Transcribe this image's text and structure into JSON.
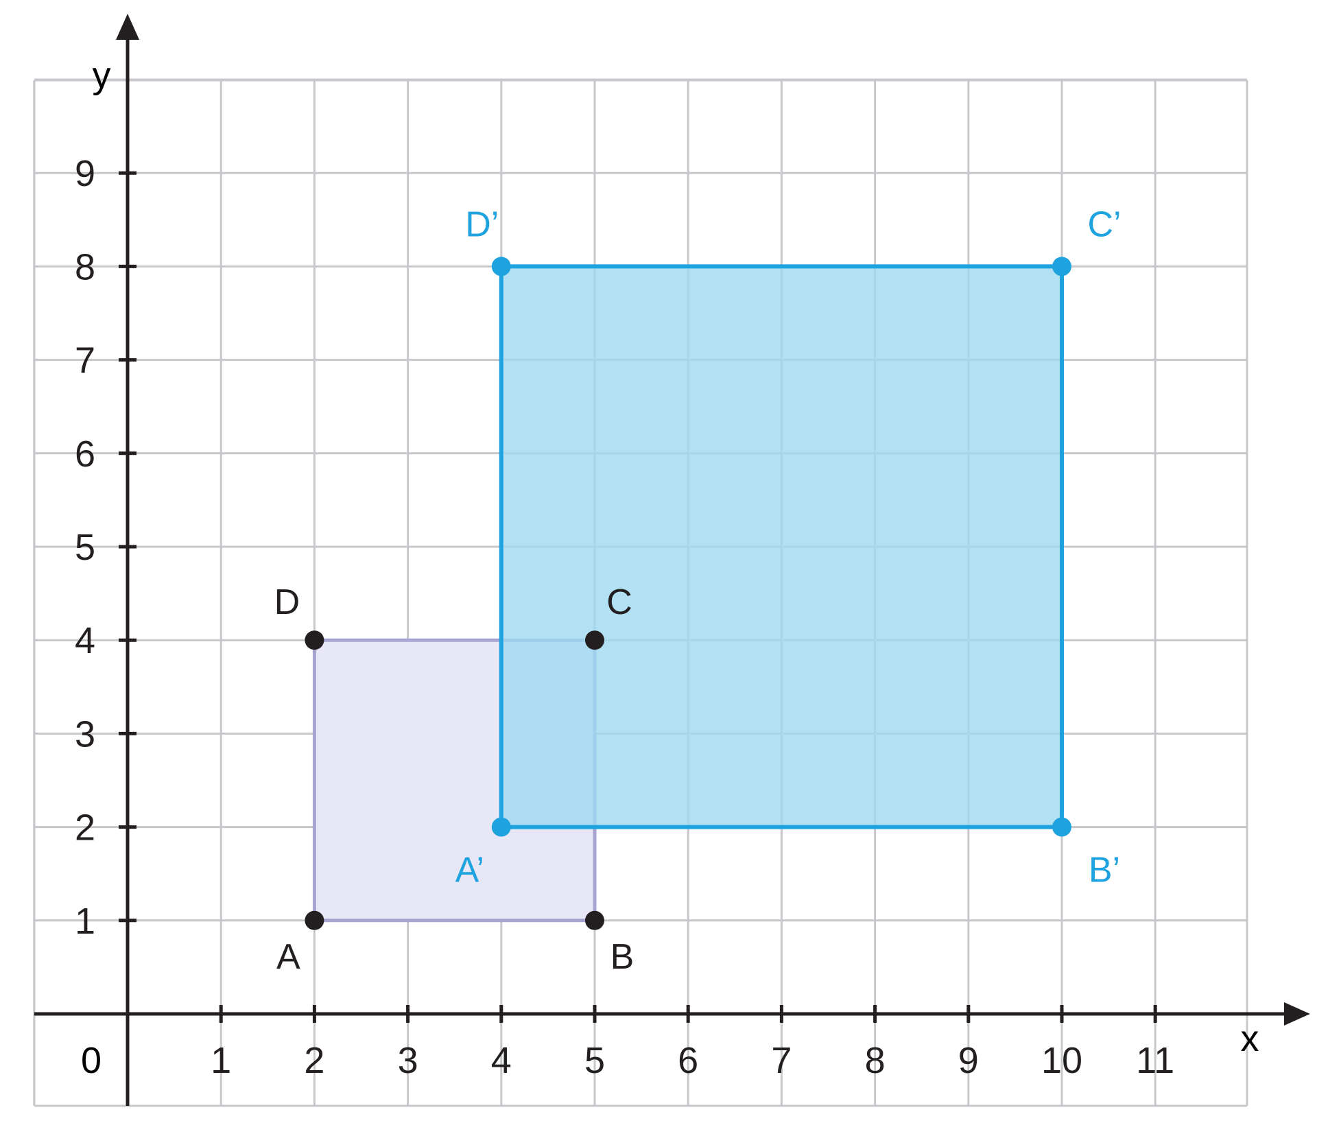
{
  "diagram": {
    "axes": {
      "x_label": "x",
      "y_label": "y",
      "origin_label": "0",
      "x_ticks": [
        "1",
        "2",
        "3",
        "4",
        "5",
        "6",
        "7",
        "8",
        "9",
        "10",
        "11"
      ],
      "y_ticks": [
        "1",
        "2",
        "3",
        "4",
        "5",
        "6",
        "7",
        "8",
        "9"
      ],
      "x_range": [
        -1,
        12
      ],
      "y_range": [
        -1,
        10
      ]
    },
    "shapes": [
      {
        "name": "ABCD",
        "fill": "#e8e7f5",
        "stroke": "#a7a4d2",
        "point_color": "#231f20",
        "label_color": "#231f20",
        "points": [
          {
            "label": "A",
            "x": 2,
            "y": 1
          },
          {
            "label": "B",
            "x": 5,
            "y": 1
          },
          {
            "label": "C",
            "x": 5,
            "y": 4
          },
          {
            "label": "D",
            "x": 2,
            "y": 4
          }
        ]
      },
      {
        "name": "A'B'C'D'",
        "fill": "#9fd9f1",
        "fill_opacity": 0.8,
        "stroke": "#1fa3df",
        "point_color": "#1fa3df",
        "label_color": "#1fa3df",
        "points": [
          {
            "label": "A’",
            "x": 4,
            "y": 2
          },
          {
            "label": "B’",
            "x": 10,
            "y": 2
          },
          {
            "label": "C’",
            "x": 10,
            "y": 8
          },
          {
            "label": "D’",
            "x": 4,
            "y": 8
          }
        ]
      }
    ],
    "colors": {
      "grid": "#c8c8cc",
      "axis": "#231f20",
      "text": "#231f20"
    }
  }
}
